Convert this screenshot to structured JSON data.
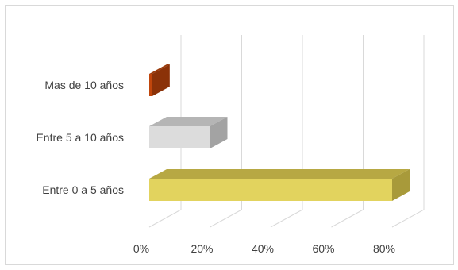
{
  "chart_data": {
    "type": "bar",
    "orientation": "horizontal",
    "style": "3d",
    "categories": [
      "Mas de 10 años",
      "Entre 5 a 10 años",
      "Entre 0 a 5 años"
    ],
    "values": [
      0.01,
      0.2,
      0.8
    ],
    "colors": [
      "#C0460C",
      "#DCDCDC",
      "#E2D35E"
    ],
    "side_colors": [
      "#8B3208",
      "#A3A3A3",
      "#A89A3A"
    ],
    "top_colors": [
      "#9A3A0A",
      "#B5B5B5",
      "#B7A843"
    ],
    "xlim": [
      0,
      0.8
    ],
    "x_ticks": [
      0,
      0.2,
      0.4,
      0.6,
      0.8
    ],
    "x_tick_labels": [
      "0%",
      "20%",
      "40%",
      "60%",
      "80%"
    ],
    "grid": true,
    "legend": "none",
    "title": "",
    "xlabel": "",
    "ylabel": ""
  },
  "colors": {
    "grid": "#d9d9d9",
    "text": "#404040",
    "border": "#d9d9d9"
  }
}
